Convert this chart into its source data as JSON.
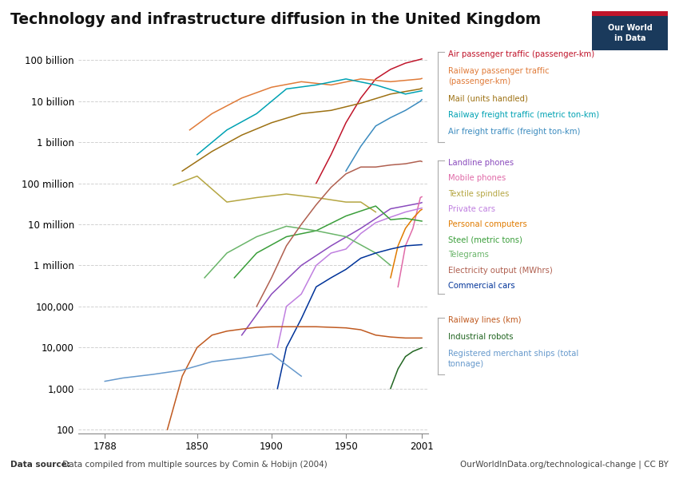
{
  "title": "Technology and infrastructure diffusion in the United Kingdom",
  "data_source_bold": "Data source:",
  "data_source_rest": " Data compiled from multiple sources by Comin & Hobijn (2004)",
  "url": "OurWorldInData.org/technological-change | CC BY",
  "background_color": "#ffffff",
  "plot_bg_color": "#ffffff",
  "grid_color": "#cccccc",
  "xlim": [
    1770,
    2005
  ],
  "ylim_log": [
    80,
    200000000000.0
  ],
  "xticks": [
    1788,
    1850,
    1900,
    1950,
    2001
  ],
  "ytick_labels": [
    "100",
    "1,000",
    "10,000",
    "100,000",
    "1 million",
    "10 million",
    "100 million",
    "1 billion",
    "10 billion",
    "100 billion"
  ],
  "ytick_values": [
    100,
    1000,
    10000,
    100000,
    1000000,
    10000000,
    100000000,
    1000000000,
    10000000000,
    100000000000
  ],
  "series": [
    {
      "name": "Air passenger traffic (passenger-km)",
      "color": "#c0152b",
      "data_x": [
        1930,
        1940,
        1950,
        1960,
        1970,
        1980,
        1990,
        2000,
        2001
      ],
      "data_y": [
        100000000.0,
        500000000.0,
        3000000000.0,
        12000000000.0,
        35000000000.0,
        60000000000.0,
        85000000000.0,
        105000000000.0,
        108000000000.0
      ]
    },
    {
      "name": "Railway passenger traffic\n(passenger-km)",
      "color": "#e07b39",
      "data_x": [
        1845,
        1860,
        1880,
        1900,
        1920,
        1940,
        1960,
        1980,
        2000,
        2001
      ],
      "data_y": [
        2000000000.0,
        5000000000.0,
        12000000000.0,
        22000000000.0,
        30000000000.0,
        25000000000.0,
        35000000000.0,
        30000000000.0,
        35000000000.0,
        36000000000.0
      ]
    },
    {
      "name": "Mail (units handled)",
      "color": "#9d7113",
      "data_x": [
        1840,
        1860,
        1880,
        1900,
        1920,
        1940,
        1960,
        1980,
        2000,
        2001
      ],
      "data_y": [
        200000000.0,
        600000000.0,
        1500000000.0,
        3000000000.0,
        5000000000.0,
        6000000000.0,
        9000000000.0,
        15000000000.0,
        20000000000.0,
        21000000000.0
      ]
    },
    {
      "name": "Railway freight traffic (metric ton-km)",
      "color": "#00a2b3",
      "data_x": [
        1850,
        1870,
        1890,
        1910,
        1930,
        1950,
        1970,
        1990,
        2001
      ],
      "data_y": [
        500000000.0,
        2000000000.0,
        5000000000.0,
        20000000000.0,
        25000000000.0,
        35000000000.0,
        25000000000.0,
        15000000000.0,
        18000000000.0
      ]
    },
    {
      "name": "Air freight traffic (freight ton-km)",
      "color": "#3b8bbf",
      "data_x": [
        1950,
        1960,
        1970,
        1980,
        1990,
        2000,
        2001
      ],
      "data_y": [
        200000000.0,
        800000000.0,
        2500000000.0,
        4000000000.0,
        6000000000.0,
        10000000000.0,
        11000000000.0
      ]
    },
    {
      "name": "Landline phones",
      "color": "#8a4bbd",
      "data_x": [
        1880,
        1900,
        1920,
        1940,
        1960,
        1980,
        2000,
        2001
      ],
      "data_y": [
        20000.0,
        200000.0,
        1000000.0,
        3000000.0,
        8000000.0,
        24000000.0,
        33000000.0,
        34000000.0
      ]
    },
    {
      "name": "Mobile phones",
      "color": "#e06ba8",
      "data_x": [
        1985,
        1990,
        1995,
        2000,
        2001
      ],
      "data_y": [
        300000.0,
        3000000.0,
        8000000.0,
        45000000.0,
        47000000.0
      ]
    },
    {
      "name": "Textile spindles",
      "color": "#b5a642",
      "data_x": [
        1834,
        1850,
        1870,
        1890,
        1910,
        1930,
        1950,
        1960,
        1970
      ],
      "data_y": [
        90000000.0,
        150000000.0,
        35000000.0,
        45000000.0,
        55000000.0,
        45000000.0,
        35000000.0,
        35000000.0,
        20000000.0
      ]
    },
    {
      "name": "Private cars",
      "color": "#c080e0",
      "data_x": [
        1904,
        1910,
        1920,
        1930,
        1940,
        1950,
        1960,
        1970,
        1980,
        1990,
        2001
      ],
      "data_y": [
        10000.0,
        100000.0,
        200000.0,
        1000000.0,
        2000000.0,
        2500000.0,
        6000000.0,
        11000000.0,
        15000000.0,
        20000000.0,
        25000000.0
      ]
    },
    {
      "name": "Personal computers",
      "color": "#e07b00",
      "data_x": [
        1980,
        1985,
        1990,
        1995,
        2000,
        2001
      ],
      "data_y": [
        500000.0,
        3000000.0,
        8000000.0,
        14000000.0,
        22000000.0,
        23000000.0
      ]
    },
    {
      "name": "Steel (metric tons)",
      "color": "#3a9e3a",
      "data_x": [
        1875,
        1890,
        1910,
        1930,
        1950,
        1970,
        1980,
        1990,
        2001
      ],
      "data_y": [
        500000.0,
        2000000.0,
        5000000.0,
        7000000.0,
        16000000.0,
        28000000.0,
        13000000.0,
        14000000.0,
        12000000.0
      ]
    },
    {
      "name": "Telegrams",
      "color": "#6ab56a",
      "data_x": [
        1855,
        1870,
        1890,
        1910,
        1930,
        1950,
        1970,
        1980
      ],
      "data_y": [
        500000.0,
        2000000.0,
        5000000.0,
        9000000.0,
        7000000.0,
        5000000.0,
        2000000.0,
        1000000.0
      ]
    },
    {
      "name": "Electricity output (MWhrs)",
      "color": "#b06050",
      "data_x": [
        1890,
        1900,
        1910,
        1920,
        1930,
        1940,
        1950,
        1960,
        1970,
        1980,
        1990,
        2000,
        2001
      ],
      "data_y": [
        100000.0,
        500000.0,
        3000000.0,
        10000000.0,
        30000000.0,
        80000000.0,
        170000000.0,
        250000000.0,
        250000000.0,
        280000000.0,
        300000000.0,
        350000000.0,
        340000000.0
      ]
    },
    {
      "name": "Commercial cars",
      "color": "#003399",
      "data_x": [
        1904,
        1910,
        1920,
        1930,
        1940,
        1950,
        1960,
        1970,
        1980,
        1990,
        2001
      ],
      "data_y": [
        1000.0,
        10000.0,
        50000.0,
        300000.0,
        500000.0,
        800000.0,
        1500000.0,
        2000000.0,
        2500000.0,
        3000000.0,
        3200000.0
      ]
    },
    {
      "name": "Railway lines (km)",
      "color": "#c05a20",
      "data_x": [
        1830,
        1840,
        1850,
        1860,
        1870,
        1880,
        1890,
        1900,
        1910,
        1920,
        1930,
        1940,
        1950,
        1960,
        1970,
        1980,
        1990,
        2001
      ],
      "data_y": [
        100,
        2000,
        10000.0,
        20000.0,
        25000.0,
        28000.0,
        31000.0,
        32000.0,
        32000.0,
        32000.0,
        32000.0,
        31000.0,
        30000.0,
        27000.0,
        20000.0,
        18000.0,
        17000.0,
        17000.0
      ]
    },
    {
      "name": "Industrial robots",
      "color": "#226622",
      "data_x": [
        1980,
        1985,
        1990,
        1995,
        2000,
        2001
      ],
      "data_y": [
        1000,
        3000,
        6000,
        8000,
        9500,
        9800
      ]
    },
    {
      "name": "Registered merchant ships (total tonnage)",
      "color": "#6699cc",
      "data_x": [
        1788,
        1800,
        1820,
        1840,
        1860,
        1880,
        1900,
        1920
      ],
      "data_y": [
        1500,
        1800,
        2200,
        2800,
        4500,
        5500,
        7000,
        2000
      ]
    }
  ],
  "legend_groups": [
    {
      "items": [
        {
          "label": "Air passenger traffic (passenger-km)",
          "color": "#c0152b"
        },
        {
          "label": "Railway passenger traffic\n(passenger-km)",
          "color": "#e07b39"
        },
        {
          "label": "Mail (units handled)",
          "color": "#9d7113"
        },
        {
          "label": "Railway freight traffic (metric ton-km)",
          "color": "#00a2b3"
        },
        {
          "label": "Air freight traffic (freight ton-km)",
          "color": "#3b8bbf"
        }
      ]
    },
    {
      "items": [
        {
          "label": "Landline phones",
          "color": "#8a4bbd"
        },
        {
          "label": "Mobile phones",
          "color": "#e06ba8"
        },
        {
          "label": "Textile spindles",
          "color": "#b5a642"
        },
        {
          "label": "Private cars",
          "color": "#c080e0"
        },
        {
          "label": "Personal computers",
          "color": "#e07b00"
        },
        {
          "label": "Steel (metric tons)",
          "color": "#3a9e3a"
        },
        {
          "label": "Telegrams",
          "color": "#6ab56a"
        },
        {
          "label": "Electricity output (MWhrs)",
          "color": "#b06050"
        },
        {
          "label": "Commercial cars",
          "color": "#003399"
        }
      ]
    },
    {
      "items": [
        {
          "label": "Railway lines (km)",
          "color": "#c05a20"
        },
        {
          "label": "Industrial robots",
          "color": "#226622"
        },
        {
          "label": "Registered merchant ships (total\ntonnage)",
          "color": "#6699cc"
        }
      ]
    }
  ]
}
